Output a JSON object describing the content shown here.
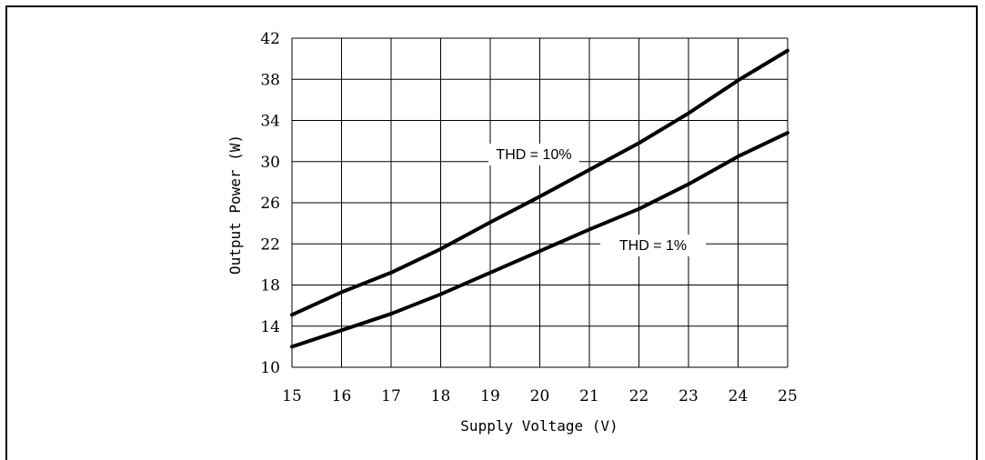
{
  "chart_data": {
    "type": "line",
    "xlabel": "Supply Voltage (V)",
    "ylabel": "Output Power (W)",
    "xlim": [
      15,
      25
    ],
    "ylim": [
      10,
      42
    ],
    "xticks": [
      "15",
      "16",
      "17",
      "18",
      "19",
      "20",
      "21",
      "22",
      "23",
      "24",
      "25"
    ],
    "yticks": [
      "10",
      "14",
      "18",
      "22",
      "26",
      "30",
      "34",
      "38",
      "42"
    ],
    "grid": true,
    "series": [
      {
        "name": "THD = 10%",
        "x": [
          15,
          16,
          17,
          18,
          19,
          20,
          21,
          22,
          23,
          24,
          25
        ],
        "y": [
          15.1,
          17.3,
          19.2,
          21.5,
          24.1,
          26.6,
          29.2,
          31.8,
          34.7,
          37.9,
          40.8
        ]
      },
      {
        "name": "THD = 1%",
        "x": [
          15,
          16,
          17,
          18,
          19,
          20,
          21,
          22,
          23,
          24,
          25
        ],
        "y": [
          12.0,
          13.6,
          15.2,
          17.1,
          19.2,
          21.3,
          23.4,
          25.4,
          27.8,
          30.5,
          32.8
        ]
      }
    ],
    "annotations": [
      {
        "text": "THD = 10%",
        "series": 0
      },
      {
        "text": "THD = 1%",
        "series": 1
      }
    ]
  }
}
